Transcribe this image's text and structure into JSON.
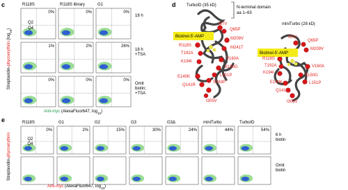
{
  "panel_c": {
    "label": "c",
    "columns": [
      "R118S",
      "R118S library",
      "G1"
    ],
    "rows": [
      {
        "label": [
          "18 h"
        ],
        "values": [
          "0%",
          "0%",
          "0%"
        ]
      },
      {
        "label": [
          "18 h",
          "+TSA"
        ],
        "values": [
          "1%",
          "2%",
          "26%"
        ]
      },
      {
        "label": [
          "Omit",
          "biotin;",
          "+TSA"
        ],
        "values": [
          "0%",
          "0%",
          "0%"
        ]
      }
    ],
    "quadrants": [
      "Q2",
      "Q4"
    ],
    "y_label": [
      "Streptavidin-",
      "phycoerythrin",
      " (log",
      "10",
      ")"
    ],
    "x_label": [
      "Anti-myc",
      " (AlexaFluor647, log",
      "10",
      ")"
    ]
  },
  "panel_d": {
    "label": "d",
    "turboid": {
      "title": "TurboID (35 kD)",
      "domain": [
        "N-terminal domain",
        "aa 1–63"
      ],
      "ligand": "Biotinol-5′-AMP",
      "mutations": [
        "I87V",
        "Q65P",
        "M209V",
        "M241T",
        "R118S",
        "T192A",
        "V160A",
        "K194I",
        "S150G",
        "L151P",
        "E140K",
        "S263P",
        "Q141R",
        "I305V"
      ]
    },
    "miniturbo": {
      "title": "miniTurbo (28 kD)",
      "ligand": "Biotinol-5′-AMP",
      "mutations": [
        "I87V",
        "Q65P",
        "M209V",
        "R118S",
        "T192A",
        "K194I",
        "V160A",
        "S150G",
        "L151P",
        "E140K",
        "Q141R",
        "I305V"
      ]
    }
  },
  "panel_e": {
    "label": "e",
    "columns": [
      "R118S",
      "G1",
      "G2",
      "G3",
      "G3Δ",
      "miniTurbo",
      "TurboID"
    ],
    "column_colors": [
      "#000000",
      "#000000",
      "#000000",
      "#000000",
      "#000000",
      "#e0201b",
      "#e0201b"
    ],
    "values": [
      "0%",
      "2%",
      "15%",
      "30%",
      "24%",
      "44%",
      "54%"
    ],
    "rows": [
      [
        "6 h",
        "biotin"
      ],
      [
        "Omit",
        "biotin"
      ]
    ],
    "quadrants": [
      "Q2",
      "Q4"
    ],
    "y_label": [
      "Streptavidin-",
      "phycoerythrin"
    ],
    "x_label": [
      "Anti-myc",
      " (AlexaFluor647, log",
      "10",
      ")"
    ]
  }
}
